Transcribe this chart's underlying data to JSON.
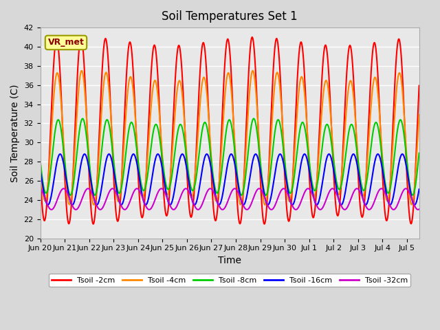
{
  "title": "Soil Temperatures Set 1",
  "xlabel": "Time",
  "ylabel": "Soil Temperature (C)",
  "ylim": [
    20,
    42
  ],
  "xlim_days": 15.5,
  "background_color": "#e8e8e8",
  "plot_bg_color": "#e8e8e8",
  "grid_color": "#ffffff",
  "annotation_text": "VR_met",
  "legend_labels": [
    "Tsoil -2cm",
    "Tsoil -4cm",
    "Tsoil -8cm",
    "Tsoil -16cm",
    "Tsoil -32cm"
  ],
  "line_colors": [
    "#ff0000",
    "#ff8800",
    "#00cc00",
    "#0000ff",
    "#cc00cc"
  ],
  "line_widths": [
    1.5,
    1.5,
    1.5,
    1.5,
    1.5
  ],
  "date_labels": [
    "Jun 20",
    "Jun 21",
    "Jun 22",
    "Jun 23",
    "Jun 24",
    "Jun 25",
    "Jun 26",
    "Jun 27",
    "Jun 28",
    "Jun 29",
    "Jun 30",
    "Jul 1",
    "Jul 2",
    "Jul 3",
    "Jul 4",
    "Jul 5"
  ],
  "date_positions": [
    0,
    1,
    2,
    3,
    4,
    5,
    6,
    7,
    8,
    9,
    10,
    11,
    12,
    13,
    14,
    15
  ]
}
